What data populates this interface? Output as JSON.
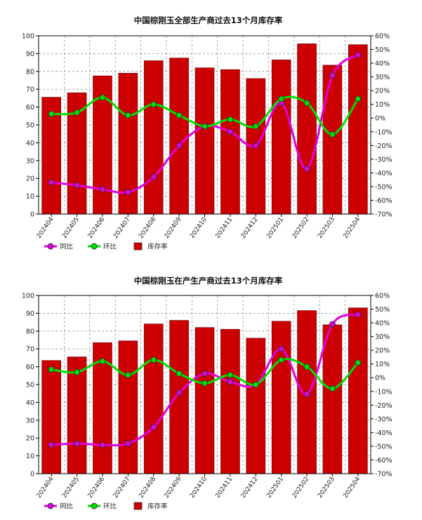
{
  "chart_data": [
    {
      "type": "bar",
      "title": "中国棕刚玉全部生产商过去13个月库存率",
      "categories": [
        "202404",
        "202405",
        "202406",
        "202407",
        "202408",
        "202409",
        "202410",
        "202411",
        "202412",
        "202501",
        "202502",
        "202503",
        "202504"
      ],
      "left_axis": {
        "min": 0,
        "max": 100,
        "ticks": [
          "0",
          "10",
          "20",
          "30",
          "40",
          "50",
          "60",
          "70",
          "80",
          "90",
          "100"
        ]
      },
      "right_axis": {
        "min": -70,
        "max": 60,
        "ticks": [
          "-70%",
          "-60%",
          "-50%",
          "-40%",
          "-30%",
          "-20%",
          "-10%",
          "0%",
          "10%",
          "20%",
          "30%",
          "40%",
          "50%",
          "60%"
        ]
      },
      "series": [
        {
          "name": "库存率",
          "type": "bar",
          "axis": "left",
          "color": "#cc0000",
          "values": [
            65.5,
            68,
            77.5,
            79,
            86,
            87.5,
            82,
            81,
            76,
            86.5,
            95.5,
            83.5,
            95
          ]
        },
        {
          "name": "同比",
          "type": "line",
          "axis": "right",
          "color": "#e000e0",
          "values": [
            -47,
            -49,
            -52,
            -54,
            -43,
            -20,
            -6,
            -10,
            -20,
            11,
            -37,
            31,
            46
          ]
        },
        {
          "name": "环比",
          "type": "line",
          "axis": "right",
          "color": "#00e000",
          "values": [
            3,
            4,
            15,
            2,
            10,
            2,
            -6,
            -1,
            -6,
            14,
            11,
            -12,
            14
          ]
        }
      ],
      "legend": [
        {
          "label": "同比",
          "symbol": "line-marker",
          "color": "#e000e0"
        },
        {
          "label": "环比",
          "symbol": "line-marker",
          "color": "#00e000"
        },
        {
          "label": "库存率",
          "symbol": "box",
          "color": "#cc0000"
        }
      ]
    },
    {
      "type": "bar",
      "title": "中国棕刚玉在产生产商过去13个月库存率",
      "categories": [
        "202404",
        "202405",
        "202406",
        "202407",
        "202408",
        "202409",
        "202410",
        "202411",
        "202412",
        "202501",
        "202502",
        "202503",
        "202504"
      ],
      "left_axis": {
        "min": 0,
        "max": 100,
        "ticks": [
          "0",
          "10",
          "20",
          "30",
          "40",
          "50",
          "60",
          "70",
          "80",
          "90",
          "100"
        ]
      },
      "right_axis": {
        "min": -70,
        "max": 60,
        "ticks": [
          "-70%",
          "-60%",
          "-50%",
          "-40%",
          "-30%",
          "-20%",
          "-10%",
          "0%",
          "10%",
          "20%",
          "30%",
          "40%",
          "50%",
          "60%"
        ]
      },
      "series": [
        {
          "name": "库存率",
          "type": "bar",
          "axis": "left",
          "color": "#cc0000",
          "values": [
            63.5,
            65.5,
            73.5,
            74.5,
            84,
            86,
            82,
            81,
            76,
            85.5,
            91.5,
            83.5,
            93
          ]
        },
        {
          "name": "同比",
          "type": "line",
          "axis": "right",
          "color": "#e000e0",
          "values": [
            -49,
            -48,
            -49,
            -48,
            -36,
            -11,
            3,
            -3,
            -5,
            21,
            -12,
            39,
            46
          ]
        },
        {
          "name": "环比",
          "type": "line",
          "axis": "right",
          "color": "#00e000",
          "values": [
            6,
            4,
            12,
            2,
            13,
            3,
            -4,
            2,
            -5,
            13,
            8,
            -8,
            11
          ]
        }
      ],
      "legend": [
        {
          "label": "同比",
          "symbol": "line-marker",
          "color": "#e000e0"
        },
        {
          "label": "环比",
          "symbol": "line-marker",
          "color": "#00e000"
        },
        {
          "label": "库存率",
          "symbol": "box",
          "color": "#cc0000"
        }
      ]
    }
  ]
}
